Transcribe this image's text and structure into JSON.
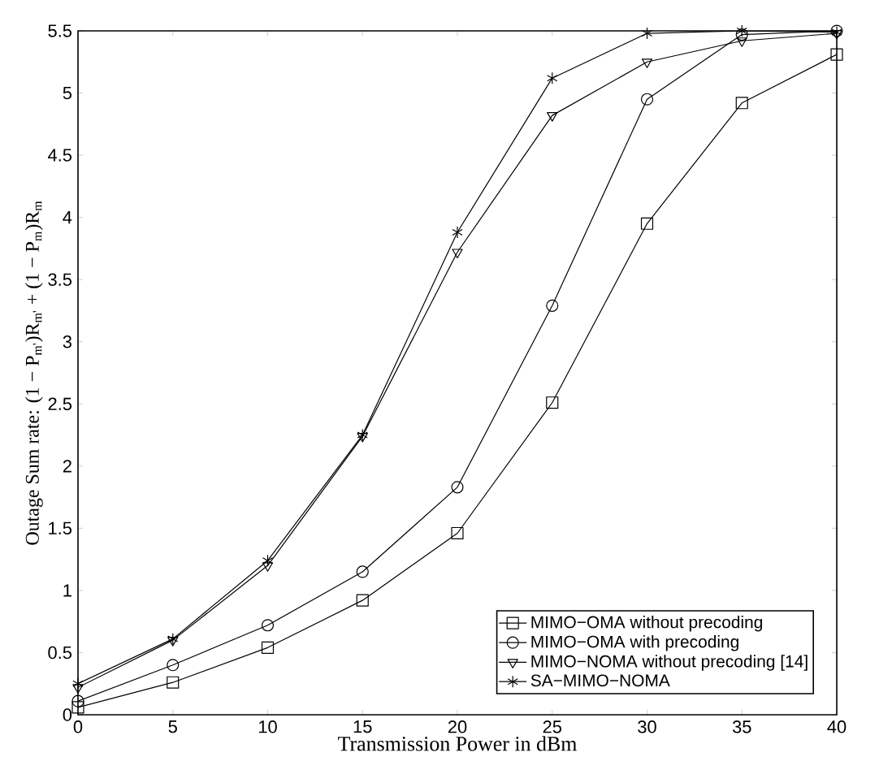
{
  "chart_data": {
    "type": "line",
    "xlabel": "Transmission Power in dBm",
    "ylabel": "Outage Sum rate: (1 − P$_{m'}$)R$_{m'}$ + (1 − P$_{m}$)R$_{m}$",
    "x": [
      0,
      5,
      10,
      15,
      20,
      25,
      30,
      35,
      40
    ],
    "series": [
      {
        "name": "MIMO−OMA without precoding",
        "color": "#000000",
        "marker": "square",
        "values": [
          0.06,
          0.26,
          0.54,
          0.92,
          1.46,
          2.51,
          3.95,
          4.92,
          5.31
        ]
      },
      {
        "name": "MIMO−OMA with precoding",
        "color": "#000000",
        "marker": "circle",
        "values": [
          0.11,
          0.4,
          0.72,
          1.15,
          1.83,
          3.29,
          4.95,
          5.47,
          5.5
        ]
      },
      {
        "name": "MIMO−NOMA without precoding [14]",
        "color": "#000000",
        "marker": "triangle",
        "values": [
          0.22,
          0.6,
          1.2,
          2.24,
          3.72,
          4.82,
          5.25,
          5.42,
          5.48
        ]
      },
      {
        "name": "SA−MIMO−NOMA",
        "color": "#000000",
        "marker": "cross",
        "values": [
          0.25,
          0.61,
          1.24,
          2.25,
          3.88,
          5.12,
          5.48,
          5.5,
          5.49
        ]
      }
    ],
    "xlim": [
      0,
      40
    ],
    "ylim": [
      0,
      5.5
    ],
    "xticks": [
      0,
      5,
      10,
      15,
      20,
      25,
      30,
      35,
      40
    ],
    "yticks": [
      0,
      0.5,
      1,
      1.5,
      2,
      2.5,
      3,
      3.5,
      4,
      4.5,
      5,
      5.5
    ],
    "grid": false,
    "legend": "bottom right",
    "line_style": "solid"
  }
}
